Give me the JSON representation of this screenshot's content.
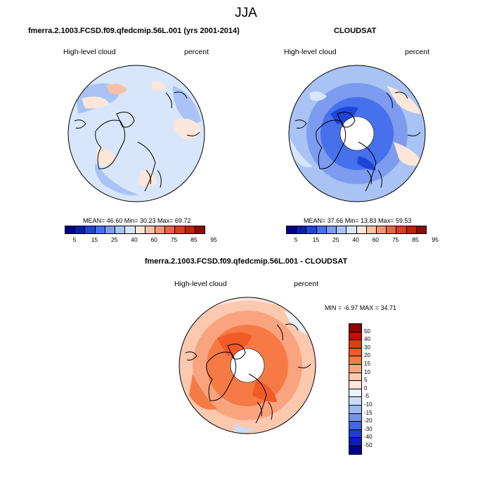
{
  "suptitle": "JJA",
  "panel_left": {
    "title": "fmerra.2.1003.FCSD.f09.qfedcmip.56L.001 (yrs 2001-2014)",
    "variable": "High-level cloud",
    "units": "percent",
    "stats": "MEAN=  46.60  Min=  30.23  Max=  69.72"
  },
  "panel_right": {
    "title": "CLOUDSAT",
    "variable": "High-level cloud",
    "units": "percent",
    "stats": "MEAN=  37.66  Min=  13.83  Max=  59.53"
  },
  "panel_diff": {
    "title": "fmerra.2.1003.FCSD.f09.qfedcmip.56L.001 - CLOUDSAT",
    "variable": "High-level cloud",
    "units": "percent",
    "stats": "MIN =  -6.97  MAX =  34.71"
  },
  "colorbar_abs": {
    "colors": [
      "#00008a",
      "#0d1ea8",
      "#1f44d8",
      "#4670ec",
      "#7d9cf0",
      "#a9c3f4",
      "#d8e6fb",
      "#fce6da",
      "#f9c0a4",
      "#f5947a",
      "#ec6446",
      "#dd3b22",
      "#c1200c",
      "#8f0a06"
    ],
    "labels": [
      "5",
      "15",
      "25",
      "40",
      "60",
      "75",
      "85",
      "95"
    ]
  },
  "colorbar_diff": {
    "colors": [
      "#8f0000",
      "#c20f00",
      "#e23b12",
      "#f25a26",
      "#f67a45",
      "#f9a37f",
      "#fcc8ae",
      "#fde6dc",
      "#eaf2fd",
      "#c9dcf8",
      "#9cbaf1",
      "#6f94ea",
      "#4168e0",
      "#1e3fd2",
      "#0b1fb2",
      "#00008c"
    ],
    "labels": [
      "50",
      "40",
      "30",
      "20",
      "15",
      "10",
      "5",
      "0",
      "-5",
      "-10",
      "-15",
      "-20",
      "-30",
      "-40",
      "-50"
    ]
  }
}
